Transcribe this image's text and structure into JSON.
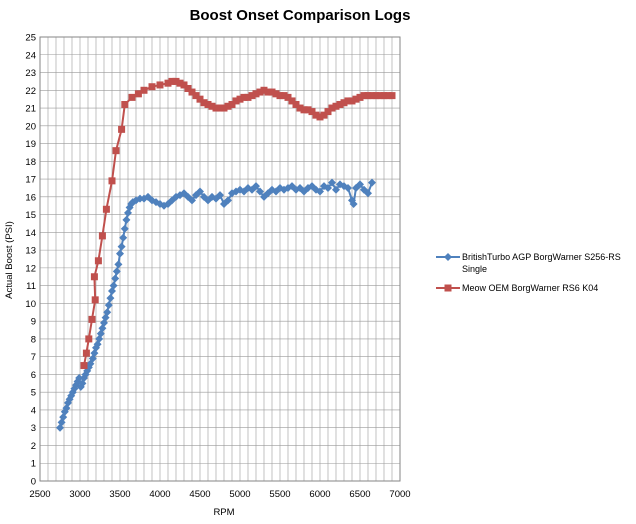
{
  "chart_data": {
    "type": "line",
    "title": "Boost Onset Comparison Logs",
    "xlabel": "RPM",
    "ylabel": "Actual Boost (PSI)",
    "xlim": [
      2500,
      7000
    ],
    "ylim": [
      0,
      25
    ],
    "xticks": [
      2500,
      3000,
      3500,
      4000,
      4500,
      5000,
      5500,
      6000,
      6500,
      7000
    ],
    "yticks": [
      0,
      1,
      2,
      3,
      4,
      5,
      6,
      7,
      8,
      9,
      10,
      11,
      12,
      13,
      14,
      15,
      16,
      17,
      18,
      19,
      20,
      21,
      22,
      23,
      24,
      25
    ],
    "x_minor_step": 100,
    "grid": true,
    "legend_position": "right",
    "series": [
      {
        "name": "BritishTurbo AGP BorgWarner S256-RS Single",
        "color": "#4f81bd",
        "marker": "diamond",
        "points": [
          [
            2750,
            3.0
          ],
          [
            2770,
            3.3
          ],
          [
            2790,
            3.6
          ],
          [
            2810,
            3.9
          ],
          [
            2830,
            4.1
          ],
          [
            2850,
            4.4
          ],
          [
            2870,
            4.6
          ],
          [
            2890,
            4.8
          ],
          [
            2910,
            5.0
          ],
          [
            2930,
            5.2
          ],
          [
            2950,
            5.4
          ],
          [
            2970,
            5.6
          ],
          [
            2990,
            5.8
          ],
          [
            3010,
            5.3
          ],
          [
            3030,
            5.5
          ],
          [
            3050,
            5.8
          ],
          [
            3070,
            6.0
          ],
          [
            3090,
            6.2
          ],
          [
            3110,
            6.4
          ],
          [
            3130,
            6.6
          ],
          [
            3160,
            6.9
          ],
          [
            3180,
            7.2
          ],
          [
            3200,
            7.5
          ],
          [
            3220,
            7.7
          ],
          [
            3240,
            8.0
          ],
          [
            3260,
            8.3
          ],
          [
            3280,
            8.6
          ],
          [
            3300,
            8.9
          ],
          [
            3320,
            9.2
          ],
          [
            3340,
            9.5
          ],
          [
            3360,
            9.9
          ],
          [
            3380,
            10.3
          ],
          [
            3400,
            10.7
          ],
          [
            3420,
            11.0
          ],
          [
            3440,
            11.4
          ],
          [
            3460,
            11.8
          ],
          [
            3480,
            12.2
          ],
          [
            3500,
            12.8
          ],
          [
            3520,
            13.2
          ],
          [
            3540,
            13.7
          ],
          [
            3560,
            14.2
          ],
          [
            3580,
            14.7
          ],
          [
            3600,
            15.1
          ],
          [
            3620,
            15.4
          ],
          [
            3640,
            15.6
          ],
          [
            3660,
            15.7
          ],
          [
            3700,
            15.8
          ],
          [
            3750,
            15.9
          ],
          [
            3800,
            15.9
          ],
          [
            3850,
            16.0
          ],
          [
            3900,
            15.8
          ],
          [
            3950,
            15.7
          ],
          [
            4000,
            15.6
          ],
          [
            4050,
            15.5
          ],
          [
            4100,
            15.6
          ],
          [
            4150,
            15.8
          ],
          [
            4200,
            16.0
          ],
          [
            4250,
            16.1
          ],
          [
            4300,
            16.2
          ],
          [
            4350,
            16.0
          ],
          [
            4400,
            15.8
          ],
          [
            4450,
            16.1
          ],
          [
            4500,
            16.3
          ],
          [
            4550,
            16.0
          ],
          [
            4600,
            15.8
          ],
          [
            4650,
            16.0
          ],
          [
            4700,
            15.9
          ],
          [
            4750,
            16.1
          ],
          [
            4800,
            15.6
          ],
          [
            4850,
            15.8
          ],
          [
            4900,
            16.2
          ],
          [
            4950,
            16.3
          ],
          [
            5000,
            16.4
          ],
          [
            5050,
            16.3
          ],
          [
            5100,
            16.5
          ],
          [
            5150,
            16.4
          ],
          [
            5200,
            16.6
          ],
          [
            5250,
            16.3
          ],
          [
            5300,
            16.0
          ],
          [
            5350,
            16.2
          ],
          [
            5400,
            16.4
          ],
          [
            5450,
            16.3
          ],
          [
            5500,
            16.5
          ],
          [
            5550,
            16.4
          ],
          [
            5600,
            16.5
          ],
          [
            5650,
            16.6
          ],
          [
            5700,
            16.4
          ],
          [
            5750,
            16.5
          ],
          [
            5800,
            16.3
          ],
          [
            5850,
            16.5
          ],
          [
            5900,
            16.6
          ],
          [
            5950,
            16.4
          ],
          [
            6000,
            16.3
          ],
          [
            6050,
            16.6
          ],
          [
            6100,
            16.5
          ],
          [
            6150,
            16.8
          ],
          [
            6200,
            16.4
          ],
          [
            6250,
            16.7
          ],
          [
            6300,
            16.6
          ],
          [
            6350,
            16.5
          ],
          [
            6400,
            15.8
          ],
          [
            6420,
            15.6
          ],
          [
            6450,
            16.5
          ],
          [
            6500,
            16.7
          ],
          [
            6550,
            16.4
          ],
          [
            6600,
            16.2
          ],
          [
            6650,
            16.8
          ]
        ]
      },
      {
        "name": "Meow OEM BorgWarner RS6 K04",
        "color": "#c0504d",
        "marker": "square",
        "points": [
          [
            3050,
            6.5
          ],
          [
            3080,
            7.2
          ],
          [
            3110,
            8.0
          ],
          [
            3150,
            9.1
          ],
          [
            3190,
            10.2
          ],
          [
            3180,
            11.5
          ],
          [
            3230,
            12.4
          ],
          [
            3280,
            13.8
          ],
          [
            3330,
            15.3
          ],
          [
            3400,
            16.9
          ],
          [
            3450,
            18.6
          ],
          [
            3520,
            19.8
          ],
          [
            3560,
            21.2
          ],
          [
            3650,
            21.6
          ],
          [
            3730,
            21.8
          ],
          [
            3800,
            22.0
          ],
          [
            3900,
            22.2
          ],
          [
            4000,
            22.3
          ],
          [
            4100,
            22.4
          ],
          [
            4150,
            22.5
          ],
          [
            4200,
            22.5
          ],
          [
            4250,
            22.4
          ],
          [
            4300,
            22.3
          ],
          [
            4350,
            22.1
          ],
          [
            4400,
            21.9
          ],
          [
            4450,
            21.7
          ],
          [
            4500,
            21.5
          ],
          [
            4550,
            21.3
          ],
          [
            4600,
            21.2
          ],
          [
            4650,
            21.1
          ],
          [
            4700,
            21.0
          ],
          [
            4750,
            21.0
          ],
          [
            4800,
            21.0
          ],
          [
            4850,
            21.1
          ],
          [
            4900,
            21.2
          ],
          [
            4950,
            21.4
          ],
          [
            5000,
            21.5
          ],
          [
            5050,
            21.6
          ],
          [
            5100,
            21.6
          ],
          [
            5150,
            21.7
          ],
          [
            5200,
            21.8
          ],
          [
            5250,
            21.9
          ],
          [
            5300,
            22.0
          ],
          [
            5350,
            21.9
          ],
          [
            5400,
            21.9
          ],
          [
            5450,
            21.8
          ],
          [
            5500,
            21.7
          ],
          [
            5550,
            21.7
          ],
          [
            5600,
            21.6
          ],
          [
            5650,
            21.4
          ],
          [
            5700,
            21.2
          ],
          [
            5750,
            21.0
          ],
          [
            5800,
            20.9
          ],
          [
            5850,
            20.9
          ],
          [
            5900,
            20.8
          ],
          [
            5950,
            20.6
          ],
          [
            6000,
            20.5
          ],
          [
            6050,
            20.6
          ],
          [
            6100,
            20.8
          ],
          [
            6150,
            21.0
          ],
          [
            6200,
            21.1
          ],
          [
            6250,
            21.2
          ],
          [
            6300,
            21.3
          ],
          [
            6350,
            21.4
          ],
          [
            6400,
            21.4
          ],
          [
            6450,
            21.5
          ],
          [
            6500,
            21.6
          ],
          [
            6550,
            21.7
          ],
          [
            6600,
            21.7
          ],
          [
            6650,
            21.7
          ],
          [
            6700,
            21.7
          ],
          [
            6750,
            21.7
          ],
          [
            6800,
            21.7
          ],
          [
            6850,
            21.7
          ],
          [
            6900,
            21.7
          ]
        ]
      }
    ]
  }
}
